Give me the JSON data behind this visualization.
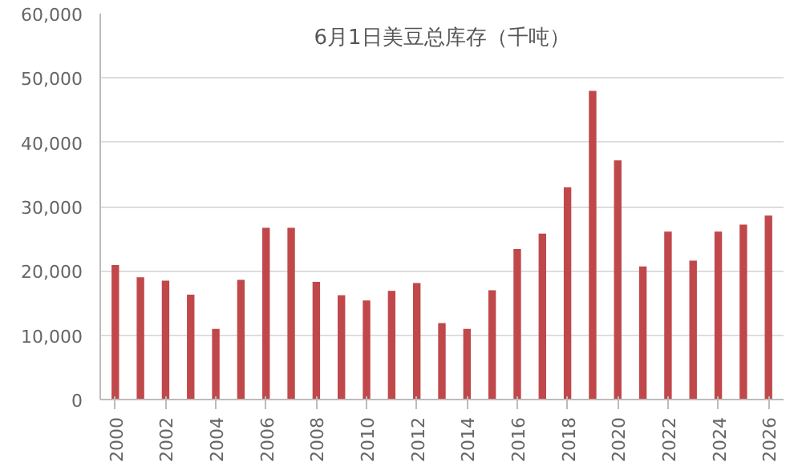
{
  "chart_data": {
    "type": "bar",
    "title": "6月1日美豆总库存（千吨）",
    "color": "#c0484a",
    "x": [
      2000,
      2001,
      2002,
      2003,
      2004,
      2005,
      2006,
      2007,
      2008,
      2009,
      2010,
      2011,
      2012,
      2013,
      2014,
      2015,
      2016,
      2017,
      2018,
      2019,
      2020,
      2021,
      2022,
      2023,
      2024,
      2025,
      2026
    ],
    "values": [
      20900,
      19000,
      18500,
      16300,
      11000,
      18600,
      26700,
      26700,
      18300,
      16200,
      15400,
      16900,
      18100,
      11900,
      11000,
      17000,
      23400,
      25800,
      33000,
      48000,
      37200,
      20700,
      26100,
      21600,
      26100,
      27200,
      28600
    ],
    "xlim": [
      1999.4,
      2026.6
    ],
    "xticks": [
      2000,
      2002,
      2004,
      2006,
      2008,
      2010,
      2012,
      2014,
      2016,
      2018,
      2020,
      2022,
      2024,
      2026
    ],
    "ylim": [
      0,
      60000
    ],
    "yticks": [
      {
        "value": 0,
        "label": "0"
      },
      {
        "value": 10000,
        "label": "10,000"
      },
      {
        "value": 20000,
        "label": "20,000"
      },
      {
        "value": 30000,
        "label": "30,000"
      },
      {
        "value": 40000,
        "label": "40,000"
      },
      {
        "value": 50000,
        "label": "50,000"
      },
      {
        "value": 60000,
        "label": "60,000"
      }
    ],
    "grid": "y"
  }
}
